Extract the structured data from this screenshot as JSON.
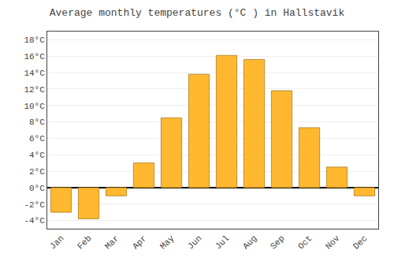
{
  "chart_data": {
    "type": "bar",
    "title": "Average monthly temperatures (°C ) in Hallstavik",
    "categories": [
      "Jan",
      "Feb",
      "Mar",
      "Apr",
      "May",
      "Jun",
      "Jul",
      "Aug",
      "Sep",
      "Oct",
      "Nov",
      "Dec"
    ],
    "values": [
      -3.0,
      -3.8,
      -1.0,
      3.0,
      8.5,
      13.8,
      16.1,
      15.6,
      11.8,
      7.3,
      2.5,
      -1.0
    ],
    "color": "#FFB830",
    "ylim": [
      -5,
      19
    ],
    "yticks": [
      {
        "value": -4,
        "label": "-4°C"
      },
      {
        "value": -2,
        "label": "-2°C"
      },
      {
        "value": 0,
        "label": "0°C"
      },
      {
        "value": 2,
        "label": "2°C"
      },
      {
        "value": 4,
        "label": "4°C"
      },
      {
        "value": 6,
        "label": "6°C"
      },
      {
        "value": 8,
        "label": "8°C"
      },
      {
        "value": 10,
        "label": "10°C"
      },
      {
        "value": 12,
        "label": "12°C"
      },
      {
        "value": 14,
        "label": "14°C"
      },
      {
        "value": 16,
        "label": "16°C"
      },
      {
        "value": 18,
        "label": "18°C"
      }
    ],
    "grid": true
  }
}
